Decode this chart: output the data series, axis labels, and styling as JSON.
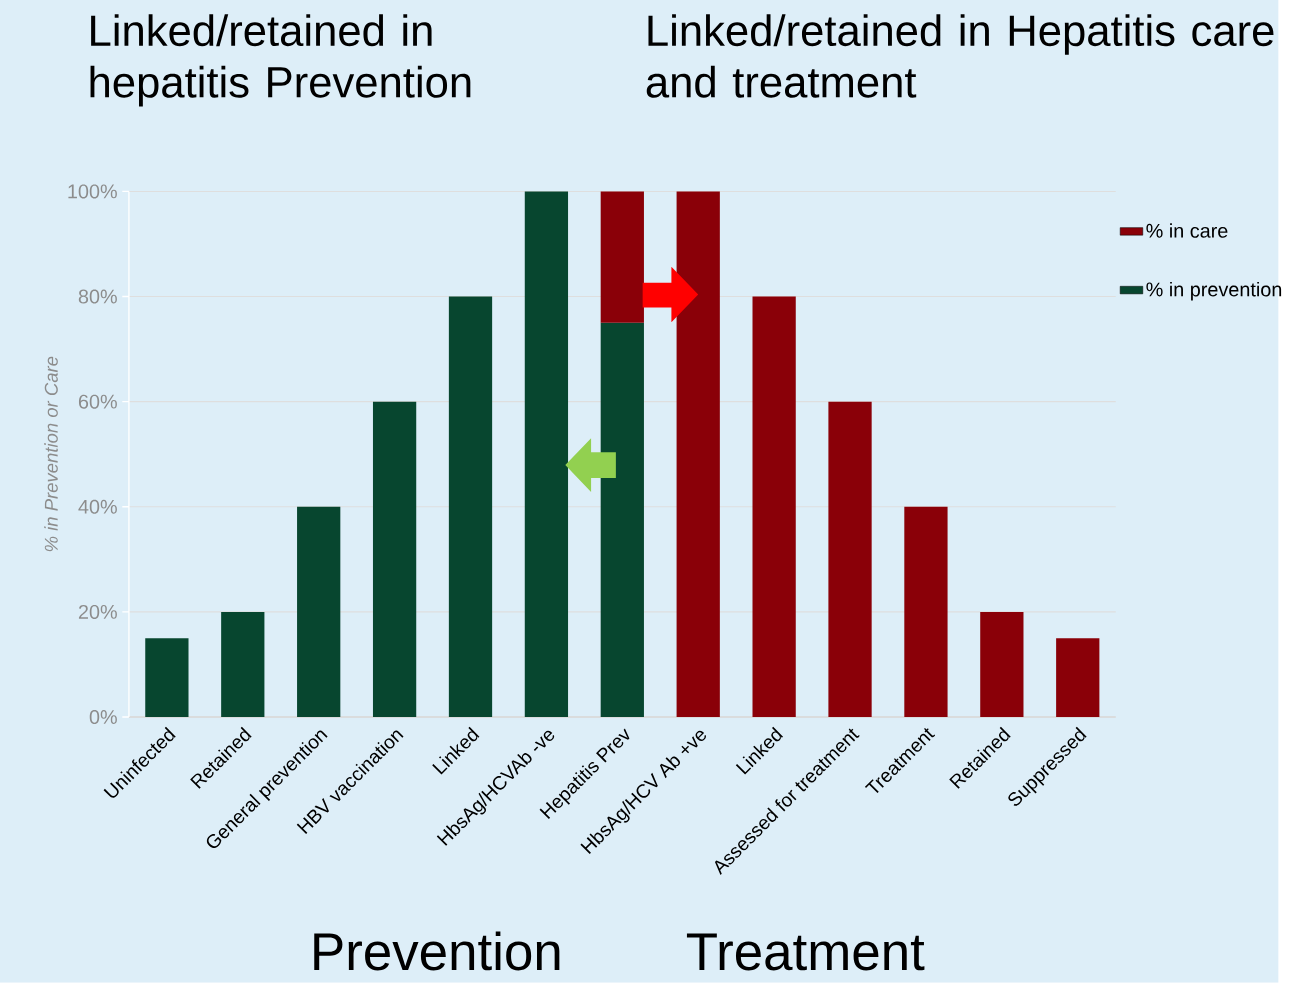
{
  "chart_data": {
    "type": "bar",
    "stacked": true,
    "categories": [
      "Uninfected",
      "Retained",
      "General prevention",
      "HBV vaccination",
      "Linked",
      "HbsAg/HCVAb -ve",
      "Hepatitis Prev",
      "HbsAg/HCV Ab +ve",
      "Linked",
      "Assessed for treatment",
      "Treatment",
      "Retained",
      "Suppressed"
    ],
    "series": [
      {
        "name": "% in prevention",
        "color": "#07462f",
        "values": [
          15,
          20,
          40,
          60,
          80,
          100,
          75,
          null,
          null,
          null,
          null,
          null,
          null
        ]
      },
      {
        "name": "% in care",
        "color": "#8a0008",
        "values": [
          null,
          null,
          null,
          null,
          null,
          null,
          25,
          100,
          80,
          60,
          40,
          20,
          15
        ]
      }
    ],
    "ylabel": "% in Prevention or Care",
    "ylim": [
      0,
      100
    ],
    "yticks": [
      {
        "value": 0,
        "label": "0%"
      },
      {
        "value": 20,
        "label": "20%"
      },
      {
        "value": 40,
        "label": "40%"
      },
      {
        "value": 60,
        "label": "60%"
      },
      {
        "value": 80,
        "label": "80%"
      },
      {
        "value": 100,
        "label": "100%"
      }
    ],
    "grid": "y",
    "legend": "top right",
    "annotations": [
      "Linked/retained in hepatitis Prevention",
      "Linked/retained in Hepatitis care and treatment",
      "Prevention",
      "Treatment"
    ]
  }
}
